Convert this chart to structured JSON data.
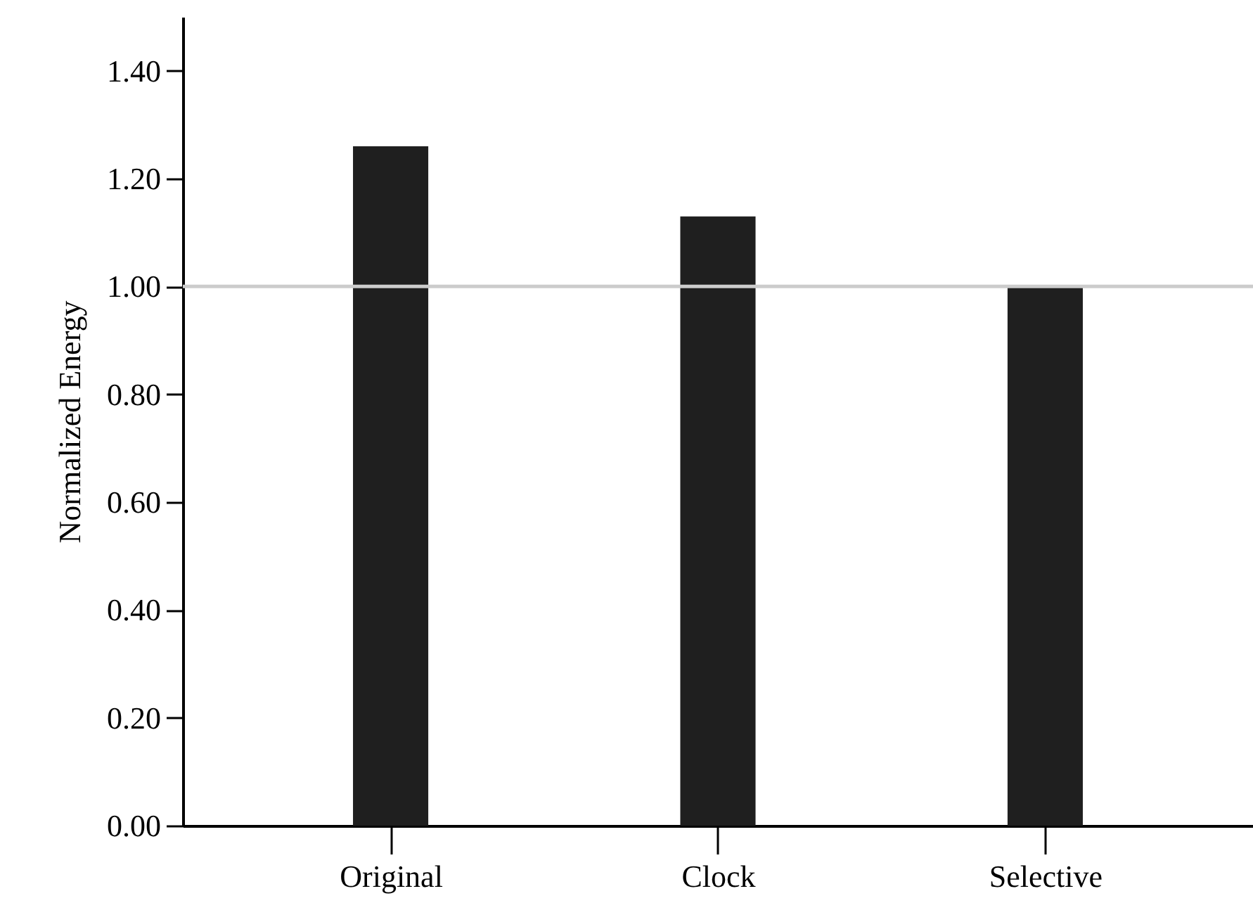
{
  "chart_data": {
    "type": "bar",
    "ylabel": "Normalized Energy",
    "categories": [
      "Original",
      "Clock",
      "Selective"
    ],
    "values": [
      1.26,
      1.13,
      1.0
    ],
    "color": "#1f1f1f",
    "ylim": [
      0,
      1.5
    ],
    "yticks": [
      {
        "value": 0,
        "label": "0.00"
      },
      {
        "value": 0.2,
        "label": "0.20"
      },
      {
        "value": 0.4,
        "label": "0.40"
      },
      {
        "value": 0.6,
        "label": "0.60"
      },
      {
        "value": 0.8,
        "label": "0.80"
      },
      {
        "value": 1.0,
        "label": "1.00"
      },
      {
        "value": 1.2,
        "label": "1.20"
      },
      {
        "value": 1.4,
        "label": "1.40"
      }
    ],
    "ref_lines": [
      {
        "axis": "y",
        "value": 1.0,
        "color": "#cccccc"
      }
    ]
  }
}
